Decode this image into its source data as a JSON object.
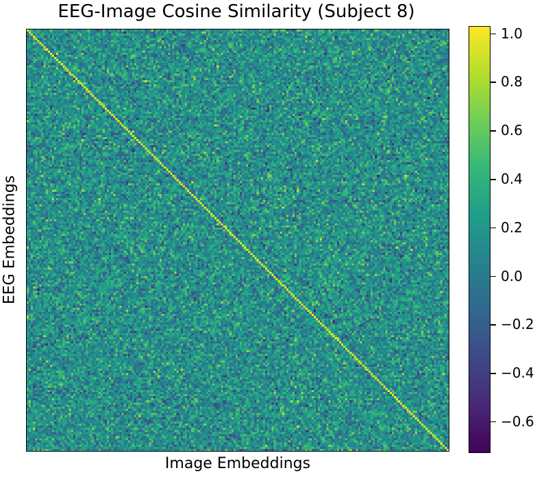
{
  "chart_data": {
    "type": "heatmap",
    "title": "EEG-Image Cosine Similarity (Subject 8)",
    "xlabel": "Image Embeddings",
    "ylabel": "EEG Embeddings",
    "grid_size": 200,
    "diagonal_value": 1.0,
    "value_range": [
      -0.73,
      1.03
    ],
    "colormap": "viridis",
    "colorbar": {
      "ticks": [
        1.0,
        0.8,
        0.6,
        0.4,
        0.2,
        0.0,
        -0.2,
        -0.4,
        -0.6
      ],
      "tick_labels": [
        "1.0",
        "0.8",
        "0.6",
        "0.4",
        "0.2",
        "0.0",
        "−0.2",
        "−0.4",
        "−0.6"
      ]
    },
    "grid": false
  }
}
